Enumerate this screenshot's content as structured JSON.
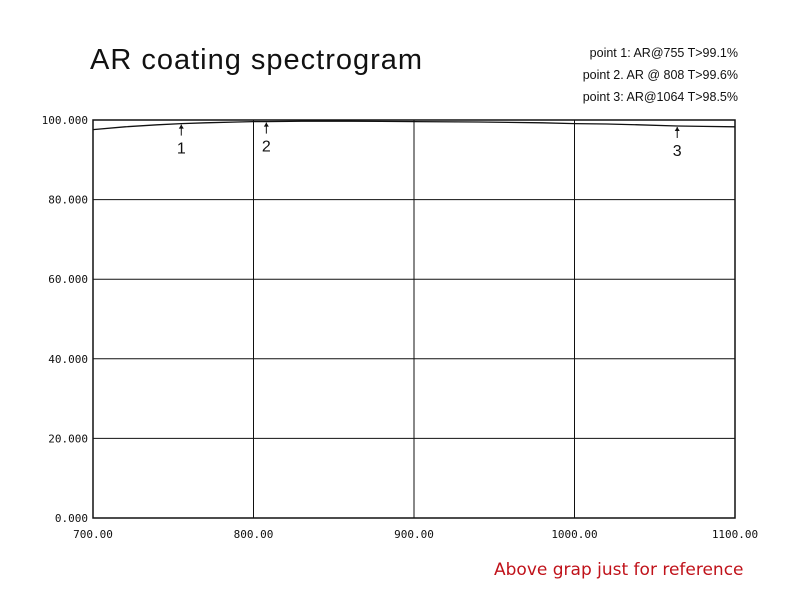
{
  "header": {
    "title": "AR coating spectrogram"
  },
  "points": [
    "point 1: AR@755  T>99.1%",
    "point 2. AR @ 808  T>99.6%",
    "point 3: AR@1064  T>98.5%"
  ],
  "footer": {
    "note": "Above grap just for reference"
  },
  "chart_data": {
    "type": "line",
    "title": "AR coating spectrogram",
    "xlabel": "",
    "ylabel": "",
    "xlim": [
      700,
      1100
    ],
    "ylim": [
      0,
      100
    ],
    "grid": true,
    "x_ticks": [
      "700.00",
      "800.00",
      "900.00",
      "1000.00",
      "1100.00"
    ],
    "x_tick_values": [
      700,
      800,
      900,
      1000,
      1100
    ],
    "y_ticks": [
      "0.000",
      "20.000",
      "40.000",
      "60.000",
      "80.000",
      "100.000"
    ],
    "y_tick_values": [
      0,
      20,
      40,
      60,
      80,
      100
    ],
    "series": [
      {
        "x": [
          700,
          720,
          740,
          755,
          770,
          790,
          800,
          808,
          830,
          860,
          900,
          940,
          980,
          1000,
          1020,
          1040,
          1064,
          1080,
          1100
        ],
        "y": [
          97.6,
          98.3,
          98.8,
          99.1,
          99.3,
          99.5,
          99.6,
          99.6,
          99.7,
          99.7,
          99.6,
          99.5,
          99.3,
          99.1,
          99.0,
          98.8,
          98.5,
          98.4,
          98.3
        ]
      }
    ],
    "annotations": [
      {
        "label": "1",
        "x": 755,
        "y": 99.1
      },
      {
        "label": "2",
        "x": 808,
        "y": 99.6
      },
      {
        "label": "3",
        "x": 1064,
        "y": 98.5
      }
    ],
    "colors": {
      "axis": "#111111",
      "grid": "#111111",
      "line": "#111111",
      "note": "#c0121a"
    }
  }
}
